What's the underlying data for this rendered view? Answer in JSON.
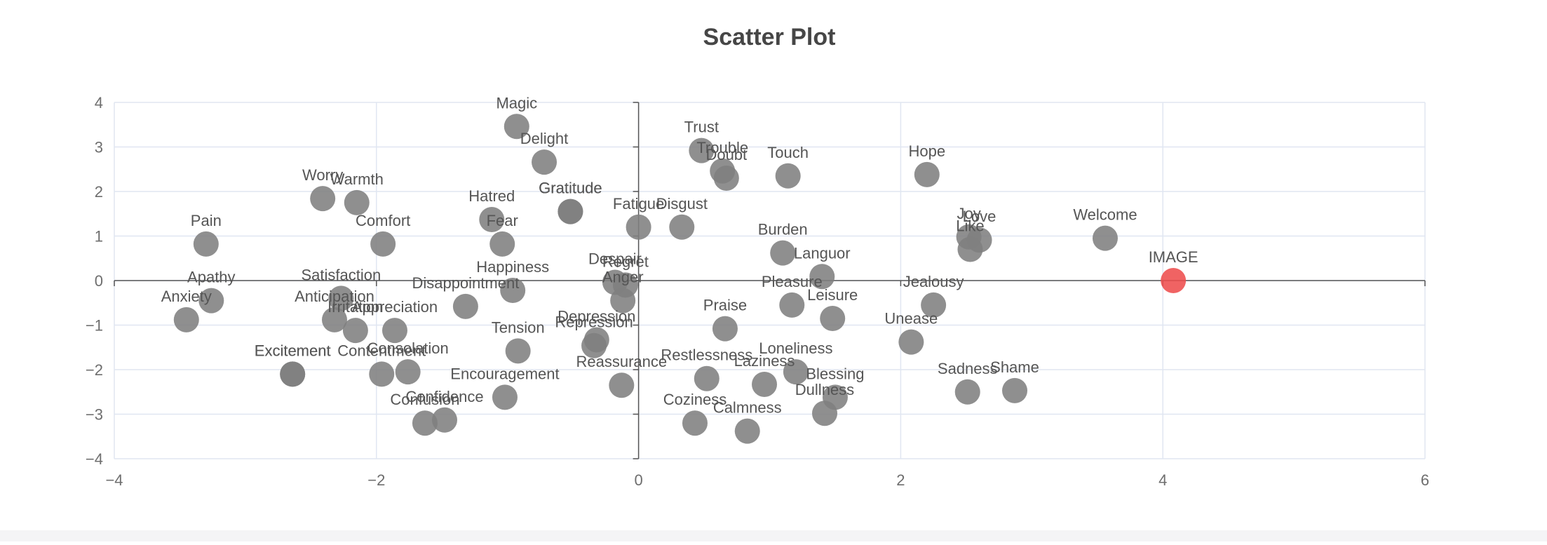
{
  "chart_data": {
    "type": "scatter",
    "title": "Scatter Plot",
    "xlim": [
      -4,
      6
    ],
    "ylim": [
      -4,
      4
    ],
    "x_ticks": [
      -4,
      -2,
      0,
      2,
      4,
      6
    ],
    "y_ticks": [
      -4,
      -3,
      -2,
      -1,
      0,
      1,
      2,
      3,
      4
    ],
    "grid": true,
    "colors": {
      "point": "#7f7f7f",
      "highlight": "#ee4d4d",
      "grid": "#e0e6f1",
      "axis": "#555555",
      "label": "#555555"
    },
    "highlight": {
      "label": "IMAGE",
      "x": 4.08,
      "y": 0.0
    },
    "points": [
      {
        "label": "Magic",
        "x": -0.93,
        "y": 3.46
      },
      {
        "label": "Delight",
        "x": -0.72,
        "y": 2.66
      },
      {
        "label": "Trust",
        "x": 0.48,
        "y": 2.92
      },
      {
        "label": "Trouble",
        "x": 0.64,
        "y": 2.46
      },
      {
        "label": "Doubt",
        "x": 0.67,
        "y": 2.3
      },
      {
        "label": "Touch",
        "x": 1.14,
        "y": 2.35
      },
      {
        "label": "Hope",
        "x": 2.2,
        "y": 2.38
      },
      {
        "label": "Worry",
        "x": -2.41,
        "y": 1.84
      },
      {
        "label": "Warmth",
        "x": -2.15,
        "y": 1.75
      },
      {
        "label": "Hatred",
        "x": -1.12,
        "y": 1.37
      },
      {
        "label": "Gratitude",
        "x": -0.52,
        "y": 1.55
      },
      {
        "label": "Gratitude",
        "x": -0.52,
        "y": 1.55
      },
      {
        "label": "Fear",
        "x": -1.04,
        "y": 0.82
      },
      {
        "label": "Fatigue",
        "x": 0.0,
        "y": 1.2
      },
      {
        "label": "Disgust",
        "x": 0.33,
        "y": 1.2
      },
      {
        "label": "Pain",
        "x": -3.3,
        "y": 0.82
      },
      {
        "label": "Comfort",
        "x": -1.95,
        "y": 0.82
      },
      {
        "label": "Burden",
        "x": 1.1,
        "y": 0.62
      },
      {
        "label": "Languor",
        "x": 1.4,
        "y": 0.09
      },
      {
        "label": "Joy",
        "x": 2.52,
        "y": 0.98
      },
      {
        "label": "Love",
        "x": 2.6,
        "y": 0.91
      },
      {
        "label": "Like",
        "x": 2.53,
        "y": 0.7
      },
      {
        "label": "Welcome",
        "x": 3.56,
        "y": 0.95
      },
      {
        "label": "Happiness",
        "x": -0.96,
        "y": -0.22
      },
      {
        "label": "Despair",
        "x": -0.18,
        "y": -0.04
      },
      {
        "label": "Regret",
        "x": -0.1,
        "y": -0.1
      },
      {
        "label": "Anger",
        "x": -0.12,
        "y": -0.45
      },
      {
        "label": "Disappointment",
        "x": -1.32,
        "y": -0.58
      },
      {
        "label": "Satisfaction",
        "x": -2.27,
        "y": -0.4
      },
      {
        "label": "Apathy",
        "x": -3.26,
        "y": -0.45
      },
      {
        "label": "Anxiety",
        "x": -3.45,
        "y": -0.88
      },
      {
        "label": "Anticipation",
        "x": -2.32,
        "y": -0.88
      },
      {
        "label": "Irritation",
        "x": -2.16,
        "y": -1.12
      },
      {
        "label": "Appreciation",
        "x": -1.86,
        "y": -1.12
      },
      {
        "label": "Pleasure",
        "x": 1.17,
        "y": -0.55
      },
      {
        "label": "Leisure",
        "x": 1.48,
        "y": -0.85
      },
      {
        "label": "Jealousy",
        "x": 2.25,
        "y": -0.55
      },
      {
        "label": "Praise",
        "x": 0.66,
        "y": -1.08
      },
      {
        "label": "Unease",
        "x": 2.08,
        "y": -1.38
      },
      {
        "label": "Depression",
        "x": -0.32,
        "y": -1.33
      },
      {
        "label": "Repression",
        "x": -0.34,
        "y": -1.46
      },
      {
        "label": "Tension",
        "x": -0.92,
        "y": -1.58
      },
      {
        "label": "Excitement",
        "x": -2.64,
        "y": -2.1
      },
      {
        "label": "Excitement",
        "x": -2.64,
        "y": -2.1
      },
      {
        "label": "Contentment",
        "x": -1.96,
        "y": -2.1
      },
      {
        "label": "Consolation",
        "x": -1.76,
        "y": -2.05
      },
      {
        "label": "Reassurance",
        "x": -0.13,
        "y": -2.35
      },
      {
        "label": "Restlessness",
        "x": 0.52,
        "y": -2.2
      },
      {
        "label": "Loneliness",
        "x": 1.2,
        "y": -2.05
      },
      {
        "label": "Laziness",
        "x": 0.96,
        "y": -2.33
      },
      {
        "label": "Blessing",
        "x": 1.5,
        "y": -2.62
      },
      {
        "label": "Dullness",
        "x": 1.42,
        "y": -2.98
      },
      {
        "label": "Encouragement",
        "x": -1.02,
        "y": -2.62
      },
      {
        "label": "Confidence",
        "x": -1.48,
        "y": -3.13
      },
      {
        "label": "Confusion",
        "x": -1.63,
        "y": -3.2
      },
      {
        "label": "Coziness",
        "x": 0.43,
        "y": -3.2
      },
      {
        "label": "Calmness",
        "x": 0.83,
        "y": -3.38
      },
      {
        "label": "Sadness",
        "x": 2.51,
        "y": -2.5
      },
      {
        "label": "Shame",
        "x": 2.87,
        "y": -2.47
      }
    ]
  }
}
